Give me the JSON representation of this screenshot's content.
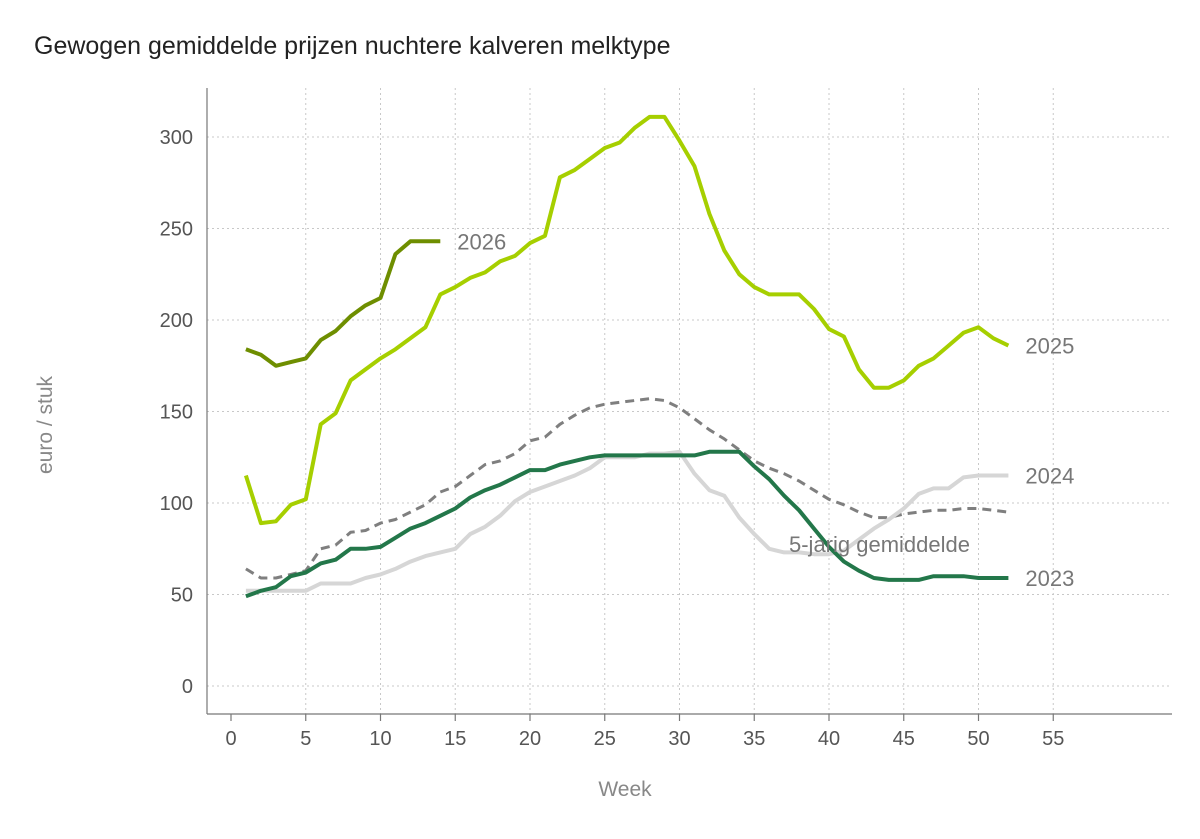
{
  "chart_data": {
    "type": "line",
    "title": "Gewogen gemiddelde prijzen nuchtere kalveren melktype",
    "xlabel": "Week",
    "ylabel": "euro / stuk",
    "xlim": [
      0,
      60
    ],
    "ylim": [
      -15,
      325
    ],
    "xticks": [
      0,
      5,
      10,
      15,
      20,
      25,
      30,
      35,
      40,
      45,
      50,
      55
    ],
    "yticks": [
      0,
      50,
      100,
      150,
      200,
      250,
      300
    ],
    "grid": true,
    "series": [
      {
        "name": "5-jarig gemiddelde",
        "color": "#7f7f7f",
        "dashed": true,
        "label_inline": true,
        "values": [
          64,
          59,
          59,
          61,
          63,
          75,
          77,
          84,
          85,
          89,
          91,
          95,
          99,
          106,
          109,
          115,
          121,
          123,
          127,
          134,
          136,
          143,
          148,
          152,
          154,
          155,
          156,
          157,
          156,
          152,
          146,
          140,
          135,
          129,
          123,
          119,
          116,
          112,
          107,
          102,
          99,
          95,
          92,
          92,
          94,
          95,
          96,
          96,
          97,
          97,
          96,
          95
        ]
      },
      {
        "name": "2024",
        "color": "#d6d6d6",
        "values": [
          52,
          52,
          52,
          52,
          52,
          56,
          56,
          56,
          59,
          61,
          64,
          68,
          71,
          73,
          75,
          83,
          87,
          93,
          101,
          106,
          109,
          112,
          115,
          119,
          125,
          125,
          125,
          127,
          127,
          128,
          116,
          107,
          104,
          92,
          83,
          75,
          73,
          73,
          72,
          72,
          74,
          80,
          86,
          91,
          97,
          105,
          108,
          108,
          114,
          115,
          115,
          115
        ]
      },
      {
        "name": "2023",
        "color": "#23774a",
        "values": [
          49,
          52,
          54,
          60,
          62,
          67,
          69,
          75,
          75,
          76,
          81,
          86,
          89,
          93,
          97,
          103,
          107,
          110,
          114,
          118,
          118,
          121,
          123,
          125,
          126,
          126,
          126,
          126,
          126,
          126,
          126,
          128,
          128,
          128,
          120,
          113,
          104,
          96,
          86,
          76,
          68,
          63,
          59,
          58,
          58,
          58,
          60,
          60,
          60,
          59,
          59,
          59
        ]
      },
      {
        "name": "2025",
        "color": "#a6cf00",
        "values": [
          115,
          89,
          90,
          99,
          102,
          143,
          149,
          167,
          173,
          179,
          184,
          190,
          196,
          214,
          218,
          223,
          226,
          232,
          235,
          242,
          246,
          278,
          282,
          288,
          294,
          297,
          305,
          311,
          311,
          298,
          284,
          258,
          238,
          225,
          218,
          214,
          214,
          214,
          206,
          195,
          191,
          173,
          163,
          163,
          167,
          175,
          179,
          186,
          193,
          196,
          190,
          186
        ]
      },
      {
        "name": "2026",
        "color": "#6e8e00",
        "values": [
          184,
          181,
          175,
          177,
          179,
          189,
          194,
          202,
          208,
          212,
          236,
          243,
          243,
          243
        ]
      }
    ]
  }
}
